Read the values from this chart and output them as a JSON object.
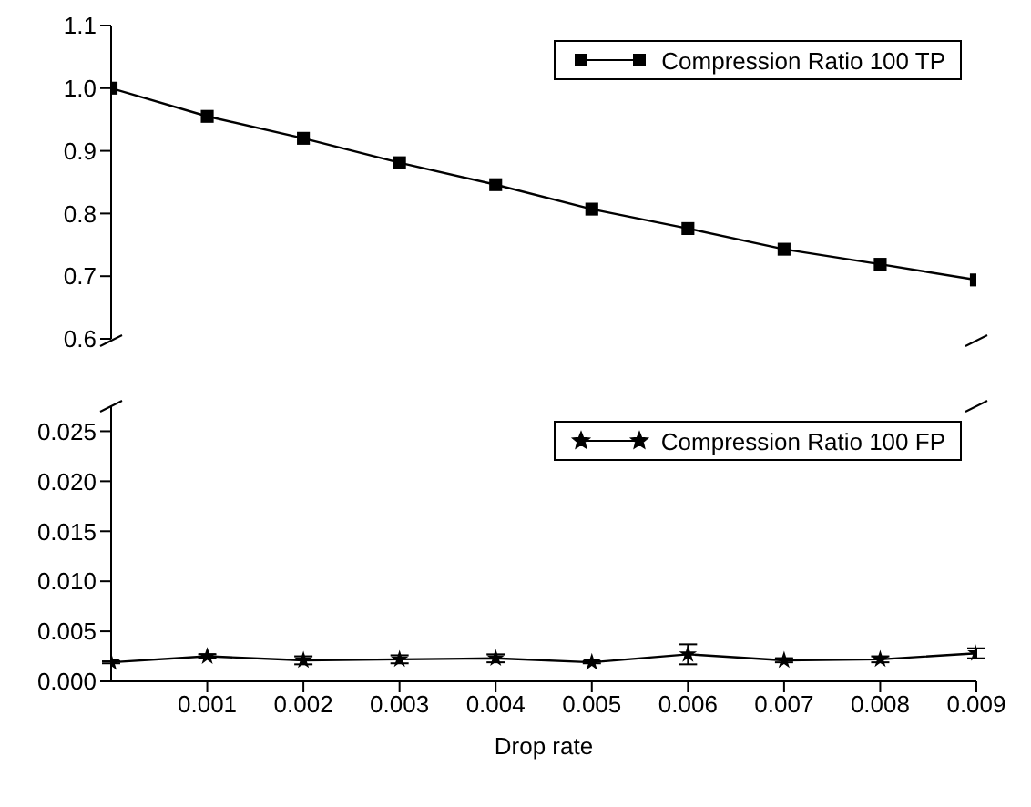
{
  "chart_data": [
    {
      "type": "line",
      "x": [
        0,
        0.001,
        0.002,
        0.003,
        0.004,
        0.005,
        0.006,
        0.007,
        0.008,
        0.009
      ],
      "xlim": [
        0,
        0.009
      ],
      "ylim": [
        0.6,
        1.1
      ],
      "yticks": [
        0.6,
        0.7,
        0.8,
        0.9,
        {
          "value": 1,
          "label": "1.0"
        },
        1.1
      ],
      "tick_labels": "y",
      "marker": "square",
      "legend": "top right",
      "series": [
        {
          "name": "Compression Ratio 100 TP",
          "color": "#000000",
          "values": [
            1.0,
            0.955,
            0.92,
            0.881,
            0.846,
            0.807,
            0.776,
            0.743,
            0.719,
            0.694
          ]
        }
      ]
    },
    {
      "type": "line",
      "xlabel": "Drop rate",
      "x": [
        0,
        0.001,
        0.002,
        0.003,
        0.004,
        0.005,
        0.006,
        0.007,
        0.008,
        0.009
      ],
      "xlim": [
        0,
        0.009
      ],
      "xticks": [
        0.001,
        0.002,
        0.003,
        0.004,
        0.005,
        0.006,
        0.007,
        0.008,
        0.009
      ],
      "ylim": [
        0,
        0.0275
      ],
      "yticks": [
        {
          "value": 0,
          "label": "0.000"
        },
        0.005,
        {
          "value": 0.01,
          "label": "0.010"
        },
        0.015,
        {
          "value": 0.02,
          "label": "0.020"
        },
        0.025
      ],
      "marker": "star",
      "legend": "top right",
      "series": [
        {
          "name": "Compression Ratio 100 FP",
          "color": "#000000",
          "values": [
            0.0019,
            0.0025,
            0.0021,
            0.0022,
            0.0023,
            0.0019,
            0.0027,
            0.0021,
            0.0022,
            0.0028
          ],
          "errors": [
            0.0001,
            0.0002,
            0.0004,
            0.0004,
            0.0004,
            0.0001,
            0.001,
            0.0002,
            0.0003,
            0.0005
          ]
        }
      ]
    }
  ]
}
